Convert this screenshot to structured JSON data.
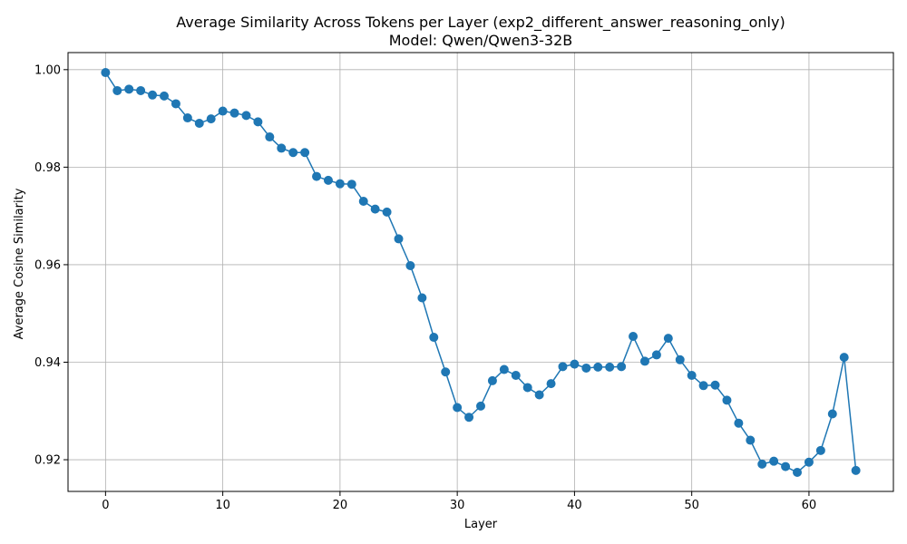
{
  "chart_data": {
    "type": "line",
    "title_line1": "Average Similarity Across Tokens per Layer (exp2_different_answer_reasoning_only)",
    "title_line2": "Model: Qwen/Qwen3-32B",
    "xlabel": "Layer",
    "ylabel": "Average Cosine Similarity",
    "xlim": [
      -3.2,
      67.2
    ],
    "ylim": [
      0.9135,
      1.0035
    ],
    "x_ticks": [
      0,
      10,
      20,
      30,
      40,
      50,
      60
    ],
    "y_ticks": [
      0.92,
      0.94,
      0.96,
      0.98,
      1.0
    ],
    "x_tick_labels": [
      "0",
      "10",
      "20",
      "30",
      "40",
      "50",
      "60"
    ],
    "y_tick_labels": [
      "0.92",
      "0.94",
      "0.96",
      "0.98",
      "1.00"
    ],
    "grid": true,
    "color": "#1f77b4",
    "marker": "circle",
    "x": [
      0,
      1,
      2,
      3,
      4,
      5,
      6,
      7,
      8,
      9,
      10,
      11,
      12,
      13,
      14,
      15,
      16,
      17,
      18,
      19,
      20,
      21,
      22,
      23,
      24,
      25,
      26,
      27,
      28,
      29,
      30,
      31,
      32,
      33,
      34,
      35,
      36,
      37,
      38,
      39,
      40,
      41,
      42,
      43,
      44,
      45,
      46,
      47,
      48,
      49,
      50,
      51,
      52,
      53,
      54,
      55,
      56,
      57,
      58,
      59,
      60,
      61,
      62,
      63,
      64
    ],
    "y": [
      0.9994,
      0.9957,
      0.996,
      0.9957,
      0.9948,
      0.9946,
      0.993,
      0.9901,
      0.989,
      0.9899,
      0.9915,
      0.9911,
      0.9906,
      0.9893,
      0.9862,
      0.9839,
      0.983,
      0.983,
      0.9781,
      0.9773,
      0.9766,
      0.9765,
      0.973,
      0.9714,
      0.9708,
      0.9653,
      0.9598,
      0.9532,
      0.9451,
      0.938,
      0.9307,
      0.9287,
      0.931,
      0.9362,
      0.9385,
      0.9373,
      0.9348,
      0.9333,
      0.9356,
      0.9391,
      0.9396,
      0.9388,
      0.939,
      0.939,
      0.9391,
      0.9453,
      0.9402,
      0.9415,
      0.9449,
      0.9405,
      0.9373,
      0.9352,
      0.9353,
      0.9322,
      0.9275,
      0.924,
      0.9191,
      0.9197,
      0.9186,
      0.9174,
      0.9195,
      0.9219,
      0.9294,
      0.941,
      0.9178
    ]
  }
}
